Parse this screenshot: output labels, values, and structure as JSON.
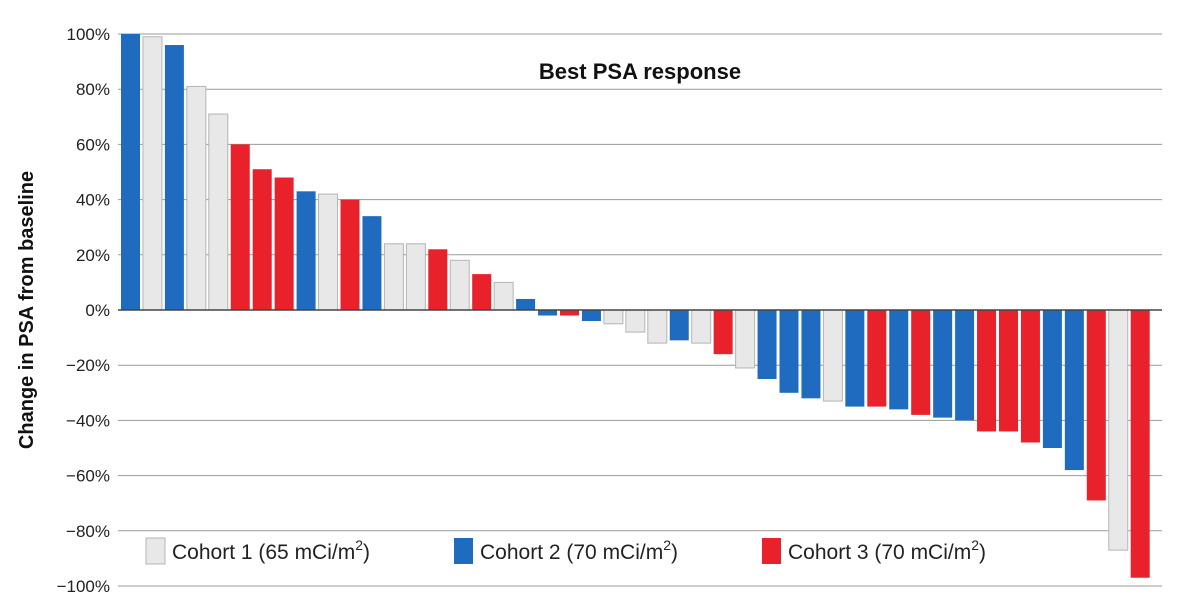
{
  "chart_data": {
    "type": "bar",
    "title": "Best PSA response",
    "ylabel": "Change in PSA from baseline",
    "ylim": [
      -100,
      100
    ],
    "ytick_values": [
      100,
      80,
      60,
      40,
      20,
      0,
      -20,
      -40,
      -60,
      -80,
      -100
    ],
    "ytick_labels": [
      "100%",
      "80%",
      "60%",
      "40%",
      "20%",
      "0%",
      "−20%",
      "−40%",
      "−60%",
      "−80%",
      "−100%"
    ],
    "grid": true,
    "legend_position": "bottom-left",
    "series": [
      {
        "name": "Cohort 1 (65 mCi/m2)",
        "legend_main": "Cohort 1 (65 mCi/m",
        "legend_sup": "2",
        "legend_end": ")",
        "color": "#e8e8e8"
      },
      {
        "name": "Cohort 2 (70 mCi/m2)",
        "legend_main": "Cohort 2 (70 mCi/m",
        "legend_sup": "2",
        "legend_end": ")",
        "color": "#1f6bbf"
      },
      {
        "name": "Cohort 3 (70 mCi/m2)",
        "legend_main": "Cohort 3 (70 mCi/m",
        "legend_sup": "2",
        "legend_end": ")",
        "color": "#e8212a"
      }
    ],
    "bars": [
      {
        "cohort": 2,
        "value": 100
      },
      {
        "cohort": 1,
        "value": 99
      },
      {
        "cohort": 2,
        "value": 96
      },
      {
        "cohort": 1,
        "value": 81
      },
      {
        "cohort": 1,
        "value": 71
      },
      {
        "cohort": 3,
        "value": 60
      },
      {
        "cohort": 3,
        "value": 51
      },
      {
        "cohort": 3,
        "value": 48
      },
      {
        "cohort": 2,
        "value": 43
      },
      {
        "cohort": 1,
        "value": 42
      },
      {
        "cohort": 3,
        "value": 40
      },
      {
        "cohort": 2,
        "value": 34
      },
      {
        "cohort": 1,
        "value": 24
      },
      {
        "cohort": 1,
        "value": 24
      },
      {
        "cohort": 3,
        "value": 22
      },
      {
        "cohort": 1,
        "value": 18
      },
      {
        "cohort": 3,
        "value": 13
      },
      {
        "cohort": 1,
        "value": 10
      },
      {
        "cohort": 2,
        "value": 4
      },
      {
        "cohort": 2,
        "value": -2
      },
      {
        "cohort": 3,
        "value": -2
      },
      {
        "cohort": 2,
        "value": -4
      },
      {
        "cohort": 1,
        "value": -5
      },
      {
        "cohort": 1,
        "value": -8
      },
      {
        "cohort": 1,
        "value": -12
      },
      {
        "cohort": 2,
        "value": -11
      },
      {
        "cohort": 1,
        "value": -12
      },
      {
        "cohort": 3,
        "value": -16
      },
      {
        "cohort": 1,
        "value": -21
      },
      {
        "cohort": 2,
        "value": -25
      },
      {
        "cohort": 2,
        "value": -30
      },
      {
        "cohort": 2,
        "value": -32
      },
      {
        "cohort": 1,
        "value": -33
      },
      {
        "cohort": 2,
        "value": -35
      },
      {
        "cohort": 3,
        "value": -35
      },
      {
        "cohort": 2,
        "value": -36
      },
      {
        "cohort": 3,
        "value": -38
      },
      {
        "cohort": 2,
        "value": -39
      },
      {
        "cohort": 2,
        "value": -40
      },
      {
        "cohort": 3,
        "value": -44
      },
      {
        "cohort": 3,
        "value": -44
      },
      {
        "cohort": 3,
        "value": -48
      },
      {
        "cohort": 2,
        "value": -50
      },
      {
        "cohort": 2,
        "value": -58
      },
      {
        "cohort": 3,
        "value": -69
      },
      {
        "cohort": 1,
        "value": -87
      },
      {
        "cohort": 3,
        "value": -97
      }
    ]
  }
}
